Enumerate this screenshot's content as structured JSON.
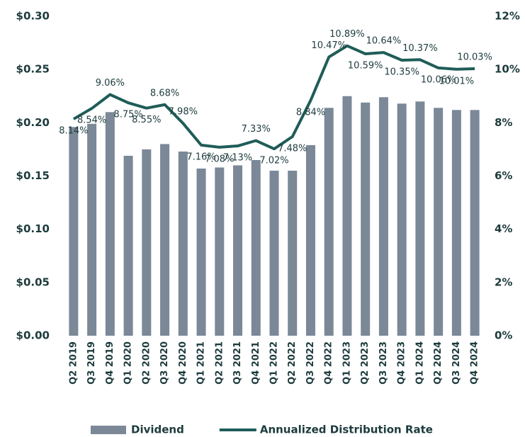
{
  "chart_data": {
    "type": "bar_line",
    "categories": [
      "Q2 2019",
      "Q3 2019",
      "Q4 2019",
      "Q1 2020",
      "Q2 2020",
      "Q3 2020",
      "Q4 2020",
      "Q1 2021",
      "Q2 2021",
      "Q3 2021",
      "Q4 2021",
      "Q1 2022",
      "Q2 2022",
      "Q3 2022",
      "Q4 2022",
      "Q1 2023",
      "Q2 2023",
      "Q3 2023",
      "Q4 2023",
      "Q1 2024",
      "Q2 2024",
      "Q3 2024",
      "Q4 2024"
    ],
    "series": [
      {
        "name": "Dividend",
        "type": "bar",
        "color": "#7a8898",
        "axis": "y",
        "values": [
          0.196,
          0.199,
          0.21,
          0.169,
          0.175,
          0.18,
          0.173,
          0.157,
          0.158,
          0.16,
          0.165,
          0.155,
          0.155,
          0.179,
          0.214,
          0.225,
          0.219,
          0.224,
          0.218,
          0.22,
          0.214,
          0.212,
          0.212
        ]
      },
      {
        "name": "Annualized Distribution Rate",
        "type": "line",
        "color": "#1f5c58",
        "axis": "y2",
        "values": [
          8.14,
          8.54,
          9.06,
          8.75,
          8.55,
          8.68,
          7.98,
          7.16,
          7.08,
          7.13,
          7.33,
          7.02,
          7.48,
          8.84,
          10.47,
          10.89,
          10.59,
          10.64,
          10.35,
          10.37,
          10.06,
          10.01,
          10.03
        ],
        "value_labels": [
          "8.14%",
          "8.54%",
          "9.06%",
          "8.75%",
          "8.55%",
          "8.68%",
          "7.98%",
          "7.16%",
          "7.08%",
          "7.13%",
          "7.33%",
          "7.02%",
          "7.48%",
          "8.84%",
          "10.47%",
          "10.89%",
          "10.59%",
          "10.64%",
          "10.35%",
          "10.37%",
          "10.06%",
          "10.01%",
          "10.03%"
        ]
      }
    ],
    "ylim": [
      0,
      0.3
    ],
    "yticks": [
      {
        "value": 0,
        "label": "$0.00"
      },
      {
        "value": 0.05,
        "label": "$0.05"
      },
      {
        "value": 0.1,
        "label": "$0.10"
      },
      {
        "value": 0.15,
        "label": "$0.15"
      },
      {
        "value": 0.2,
        "label": "$0.20"
      },
      {
        "value": 0.25,
        "label": "$0.25"
      },
      {
        "value": 0.3,
        "label": "$0.30"
      }
    ],
    "y2lim": [
      0,
      12
    ],
    "y2ticks": [
      {
        "value": 0,
        "label": "0%"
      },
      {
        "value": 2,
        "label": "2%"
      },
      {
        "value": 4,
        "label": "4%"
      },
      {
        "value": 6,
        "label": "6%"
      },
      {
        "value": 8,
        "label": "8%"
      },
      {
        "value": 10,
        "label": "10%"
      },
      {
        "value": 12,
        "label": "12%"
      }
    ],
    "legend": "bottom"
  }
}
